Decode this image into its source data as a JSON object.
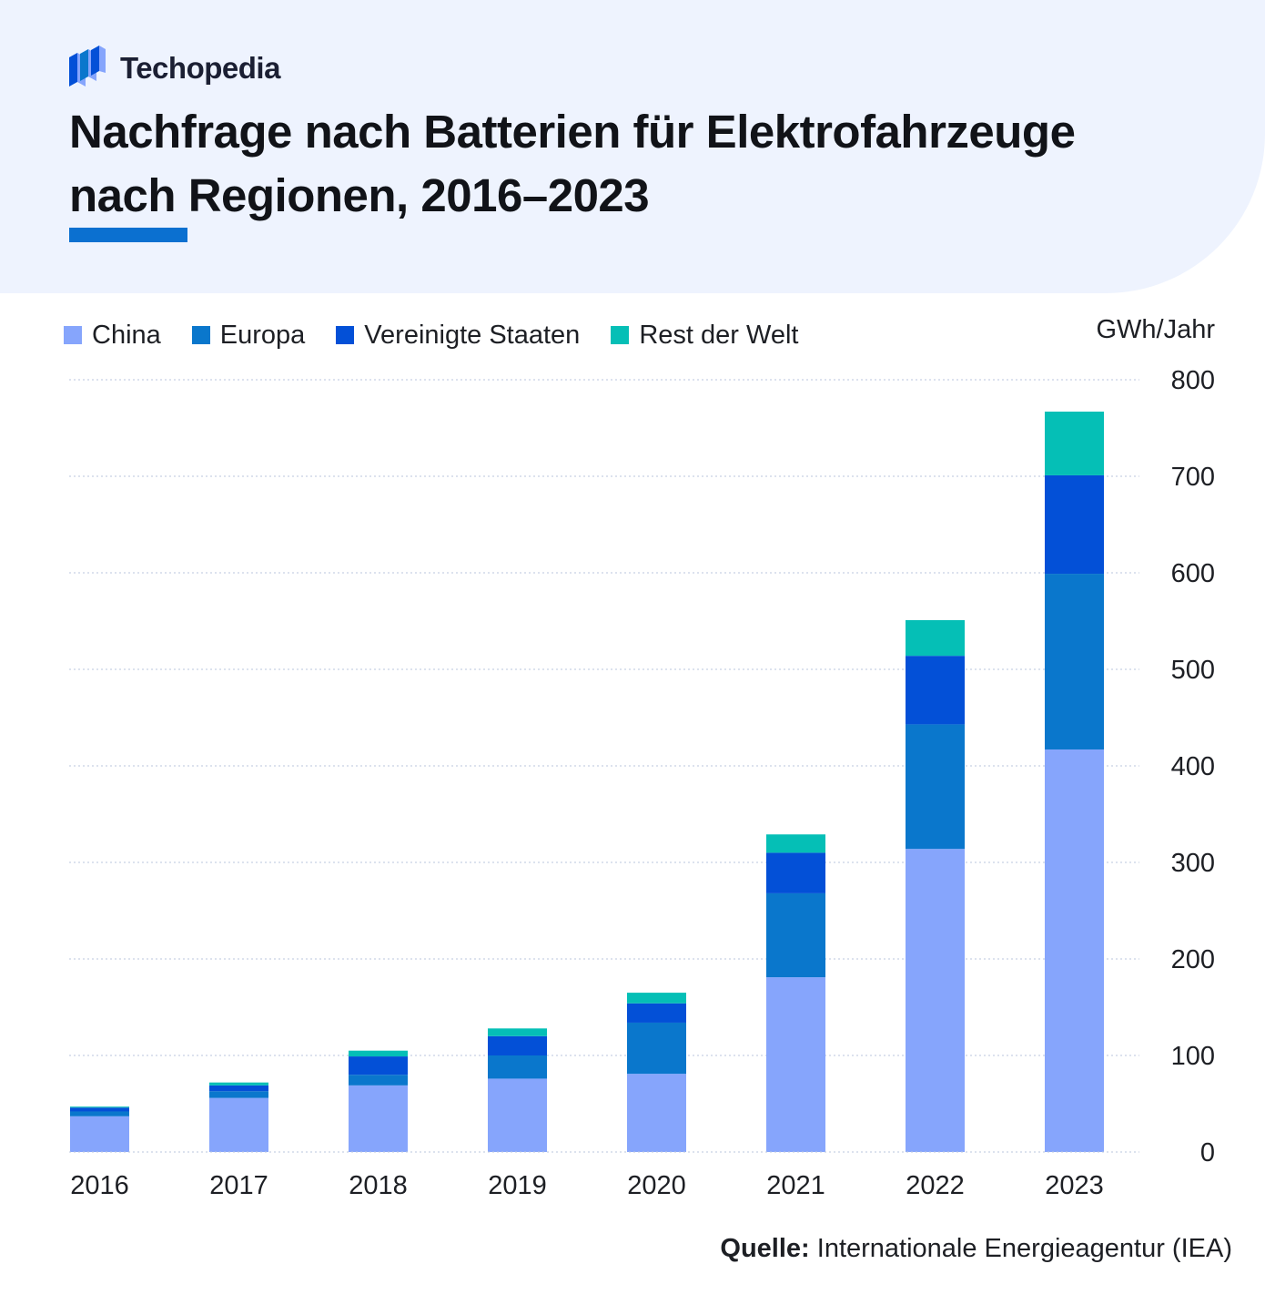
{
  "brand": {
    "name": "Techopedia",
    "logo_icon": "stacked-cubes-icon"
  },
  "title_line1": "Nachfrage nach Batterien für Elektrofahrzeuge",
  "title_line2": "nach Regionen, 2016–2023",
  "source_label": "Quelle:",
  "source_text": " Internationale Energieagentur (IEA)",
  "chart_data": {
    "type": "bar",
    "stacked": true,
    "title": "Nachfrage nach Batterien für Elektrofahrzeuge nach Regionen, 2016–2023",
    "ylabel": "GWh/Jahr",
    "xlabel": "",
    "ylim": [
      0,
      800
    ],
    "yticks": [
      0,
      100,
      200,
      300,
      400,
      500,
      600,
      700,
      800
    ],
    "grid": true,
    "y_axis_side": "right",
    "legend_position": "top-left",
    "categories": [
      "2016",
      "2017",
      "2018",
      "2019",
      "2020",
      "2021",
      "2022",
      "2023"
    ],
    "series": [
      {
        "name": "China",
        "color": "#86a5fc",
        "values": [
          37,
          56,
          69,
          76,
          81,
          181,
          314,
          417
        ]
      },
      {
        "name": "Europa",
        "color": "#0a77cc",
        "values": [
          5,
          7,
          11,
          24,
          53,
          87,
          129,
          182
        ]
      },
      {
        "name": "Vereinigte Staaten",
        "color": "#0350d7",
        "values": [
          4,
          6,
          19,
          20,
          20,
          42,
          71,
          102
        ]
      },
      {
        "name": "Rest der Welt",
        "color": "#05bfb6",
        "values": [
          1,
          3,
          6,
          8,
          11,
          19,
          37,
          66
        ]
      }
    ]
  }
}
